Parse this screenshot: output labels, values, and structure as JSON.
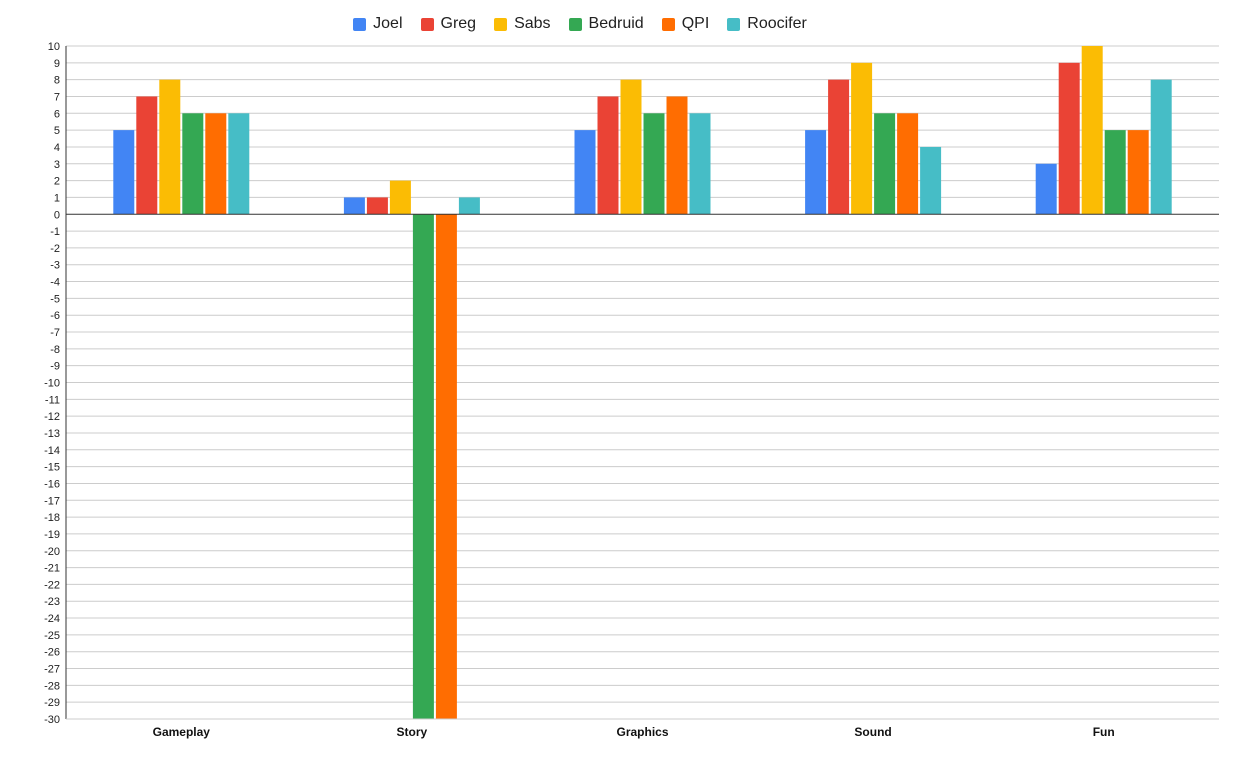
{
  "chart_data": {
    "type": "bar",
    "categories": [
      "Gameplay",
      "Story",
      "Graphics",
      "Sound",
      "Fun"
    ],
    "series": [
      {
        "name": "Joel",
        "color": "#4285f4",
        "values": [
          5,
          1,
          5,
          5,
          3
        ]
      },
      {
        "name": "Greg",
        "color": "#ea4335",
        "values": [
          7,
          1,
          7,
          8,
          9
        ]
      },
      {
        "name": "Sabs",
        "color": "#fbbc04",
        "values": [
          8,
          2,
          8,
          9,
          10
        ]
      },
      {
        "name": "Bedruid",
        "color": "#34a853",
        "values": [
          6,
          -30,
          6,
          6,
          5
        ]
      },
      {
        "name": "QPI",
        "color": "#ff6d01",
        "values": [
          6,
          -30,
          7,
          6,
          5
        ]
      },
      {
        "name": "Roocifer",
        "color": "#46bdc6",
        "values": [
          6,
          1,
          6,
          4,
          8
        ]
      }
    ],
    "title": "",
    "xlabel": "",
    "ylabel": "",
    "ylim": [
      -30,
      10
    ],
    "yticks": [
      "10",
      "9",
      "8",
      "7",
      "6",
      "5",
      "4",
      "3",
      "2",
      "1",
      "0",
      "-1",
      "-2",
      "-3",
      "-4",
      "-5",
      "-6",
      "-7",
      "-8",
      "-9",
      "-10",
      "-11",
      "-12",
      "-13",
      "-14",
      "-15",
      "-16",
      "-17",
      "-18",
      "-19",
      "-20",
      "-21",
      "-22",
      "-23",
      "-24",
      "-25",
      "-26",
      "-27",
      "-28",
      "-29",
      "-30"
    ],
    "grid": true,
    "legend_position": "top"
  }
}
